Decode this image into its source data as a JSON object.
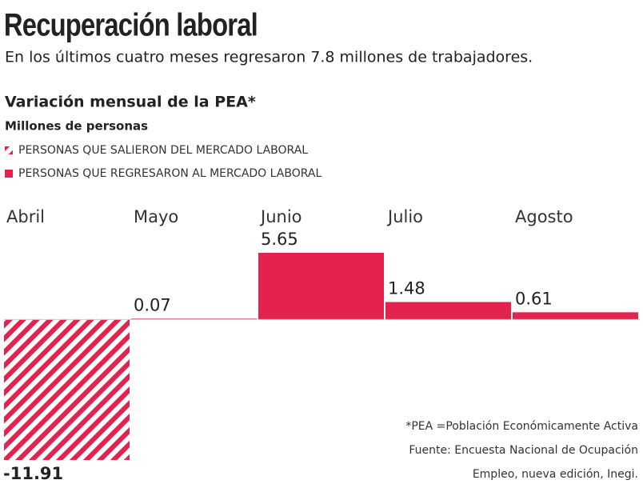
{
  "header": {
    "title": "Recuperación laboral",
    "subtitle": "En los últimos cuatro meses regresaron 7.8 millones de trabajadores."
  },
  "chart_data": {
    "type": "bar",
    "title": "Variación mensual de la PEA*",
    "subtitle": "Millones de personas",
    "categories": [
      "Abril",
      "Mayo",
      "Junio",
      "Julio",
      "Agosto"
    ],
    "series": [
      {
        "name": "PERSONAS QUE SALIERON DEL MERCADO LABORAL",
        "color": "#e3224d",
        "pattern": "hatch",
        "values": [
          -11.91,
          null,
          null,
          null,
          null
        ]
      },
      {
        "name": "PERSONAS QUE REGRESARON AL MERCADO LABORAL",
        "color": "#e3224d",
        "values": [
          null,
          0.07,
          5.65,
          1.48,
          0.61
        ]
      }
    ],
    "notes": [
      "*PEA =Población Económicamente Activa",
      "Fuente: Encuesta Nacional de Ocupación",
      "Empleo, nueva edición, Inegi."
    ]
  }
}
